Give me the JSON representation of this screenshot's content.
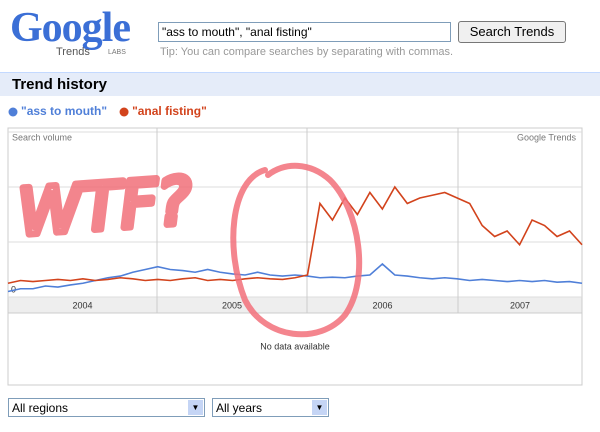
{
  "header": {
    "logo": "Google",
    "logo_sub": "Trends",
    "logo_badge": "LABS",
    "query": "\"ass to mouth\", \"anal fisting\"",
    "button": "Search Trends",
    "tip": "Tip: You can compare searches by separating with commas."
  },
  "section_title": "Trend history",
  "chart_data": {
    "type": "line",
    "y_label": "Search volume",
    "source": "Google Trends",
    "categories": [
      null,
      null,
      null,
      null,
      null,
      null,
      null,
      null,
      null,
      null,
      null,
      null,
      null,
      null,
      null,
      null,
      null,
      null,
      null,
      null,
      null,
      null,
      null,
      null,
      null,
      null,
      null,
      null,
      null,
      null,
      null,
      null,
      null,
      null,
      null,
      null,
      null,
      null,
      null,
      null,
      null,
      null,
      null,
      null,
      null,
      null,
      null
    ],
    "year_labels": [
      "2004",
      "2005",
      "2006",
      "2007"
    ],
    "series": [
      {
        "name": "\"ass to mouth\"",
        "color": "#4f7fd8",
        "values": [
          0.1,
          0.15,
          0.15,
          0.2,
          0.18,
          0.22,
          0.25,
          0.3,
          0.35,
          0.38,
          0.45,
          0.5,
          0.55,
          0.5,
          0.48,
          0.45,
          0.5,
          0.45,
          0.42,
          0.4,
          0.45,
          0.4,
          0.38,
          0.4,
          0.38,
          0.35,
          0.36,
          0.35,
          0.38,
          0.4,
          0.6,
          0.4,
          0.38,
          0.35,
          0.33,
          0.35,
          0.33,
          0.3,
          0.32,
          0.3,
          0.28,
          0.3,
          0.28,
          0.3,
          0.27,
          0.28,
          0.25
        ]
      },
      {
        "name": "\"anal fisting\"",
        "color": "#d2431c",
        "values": [
          0.25,
          0.3,
          0.28,
          0.3,
          0.32,
          0.3,
          0.33,
          0.3,
          0.32,
          0.35,
          0.33,
          0.3,
          0.32,
          0.3,
          0.33,
          0.35,
          0.3,
          0.32,
          0.3,
          0.33,
          0.35,
          0.33,
          0.32,
          0.35,
          0.4,
          1.7,
          1.4,
          1.8,
          1.5,
          1.9,
          1.6,
          2.0,
          1.7,
          1.8,
          1.85,
          1.9,
          1.8,
          1.7,
          1.3,
          1.1,
          1.2,
          0.95,
          1.4,
          1.3,
          1.1,
          1.2,
          0.95
        ]
      }
    ],
    "ylim": [
      0,
      3
    ],
    "yticks": [
      0
    ],
    "ygrid": [
      0,
      1,
      2,
      3
    ],
    "grid": true,
    "annotation": "WTF?",
    "no_data": "No data available"
  },
  "filters": {
    "regions": "All regions",
    "years": "All years"
  }
}
